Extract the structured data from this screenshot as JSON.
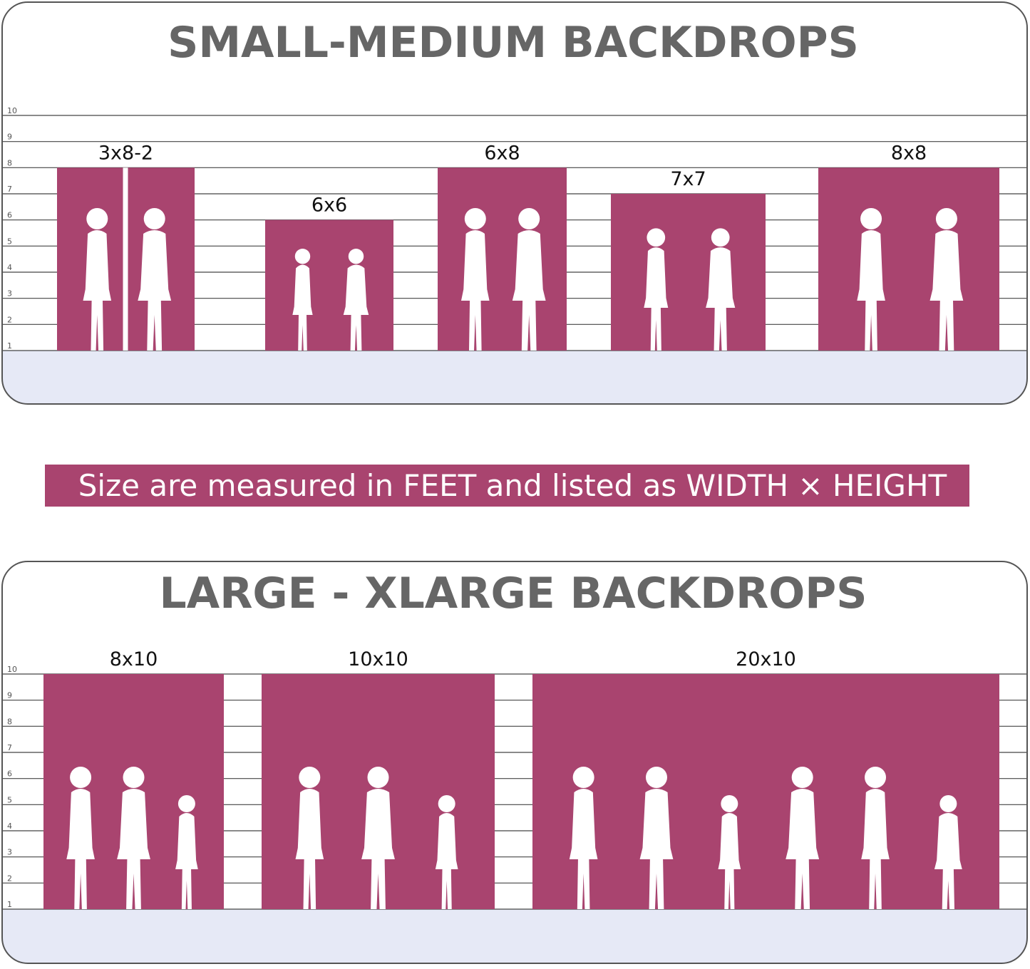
{
  "panels": [
    {
      "title": "SMALL-MEDIUM BACKDROPS",
      "ylim": [
        1,
        10
      ],
      "yticks": [
        1,
        2,
        3,
        4,
        5,
        6,
        7,
        8,
        9,
        10
      ],
      "backdrops": [
        {
          "label": "3x8-2",
          "height": 8
        },
        {
          "label": "6x6",
          "height": 6
        },
        {
          "label": "6x8",
          "height": 8
        },
        {
          "label": "7x7",
          "height": 7
        },
        {
          "label": "8x8",
          "height": 8
        }
      ]
    },
    {
      "title": "LARGE - XLARGE BACKDROPS",
      "ylim": [
        1,
        10
      ],
      "yticks": [
        1,
        2,
        3,
        4,
        5,
        6,
        7,
        8,
        9,
        10
      ],
      "backdrops": [
        {
          "label": "8x10",
          "height": 10
        },
        {
          "label": "10x10",
          "height": 10
        },
        {
          "label": "20x10",
          "height": 10
        }
      ]
    }
  ],
  "note": "Size are measured in FEET and listed as WIDTH × HEIGHT",
  "color": "#a9446f"
}
